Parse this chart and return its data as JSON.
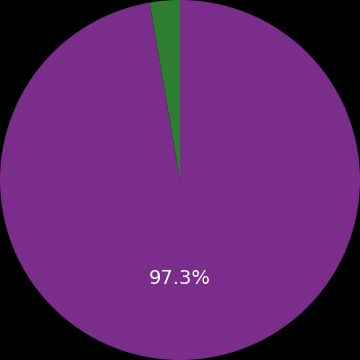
{
  "values": [
    97.3,
    2.7
  ],
  "colors": [
    "#7B2D8B",
    "#2E7D32"
  ],
  "label_text": "97.3%",
  "label_color": "#ffffff",
  "label_fontsize": 14,
  "background_color": "#000000",
  "startangle": 90,
  "figsize": [
    3.6,
    3.6
  ],
  "dpi": 100
}
